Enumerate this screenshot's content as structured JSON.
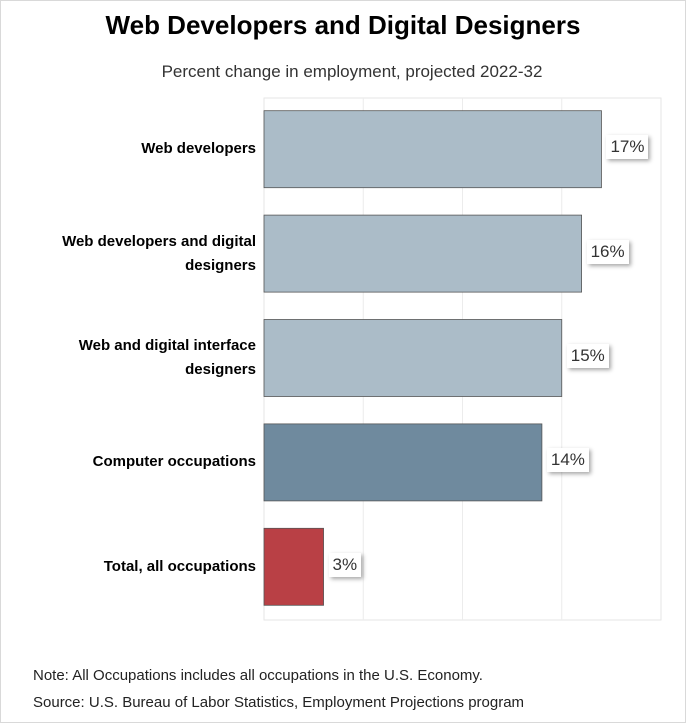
{
  "chart_data": {
    "type": "bar",
    "orientation": "horizontal",
    "title": "Web Developers and Digital Designers",
    "subtitle": "Percent change in employment, projected 2022-32",
    "categories": [
      "Web developers",
      "Web developers and digital designers",
      "Web and digital interface designers",
      "Computer occupations",
      "Total, all occupations"
    ],
    "values": [
      17,
      16,
      15,
      14,
      3
    ],
    "value_labels": [
      "17%",
      "16%",
      "15%",
      "14%",
      "3%"
    ],
    "bar_colors": [
      "#abbcc8",
      "#abbcc8",
      "#abbcc8",
      "#6f8a9e",
      "#b94045"
    ],
    "xlabel": "",
    "ylabel": "",
    "xlim": [
      0,
      20
    ],
    "grid": true
  },
  "notes": {
    "note": "Note: All Occupations includes all occupations in the U.S. Economy.",
    "source": "Source: U.S. Bureau of Labor Statistics, Employment Projections program"
  }
}
